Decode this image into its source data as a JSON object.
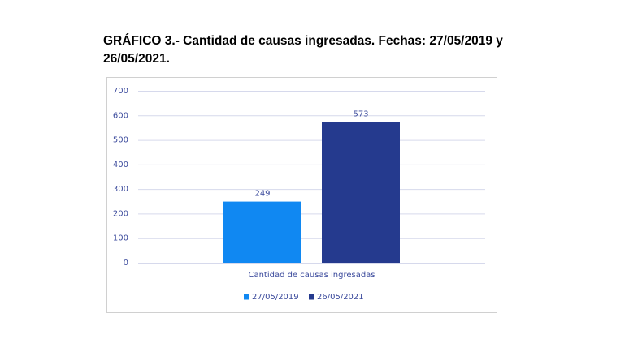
{
  "chart_data": {
    "type": "bar",
    "title": "GRÁFICO 3.- Cantidad de causas ingresadas. Fechas: 27/05/2019 y 26/05/2021.",
    "categories": [
      "Cantidad de causas ingresadas"
    ],
    "series": [
      {
        "name": "27/05/2019",
        "color": "#1088f2",
        "values": [
          249
        ]
      },
      {
        "name": "26/05/2021",
        "color": "#253a8e",
        "values": [
          573
        ]
      }
    ],
    "ylim": [
      0,
      700
    ],
    "yticks": [
      0,
      100,
      200,
      300,
      400,
      500,
      600,
      700
    ],
    "grid": true,
    "legend": "bottom",
    "data_labels": true
  }
}
